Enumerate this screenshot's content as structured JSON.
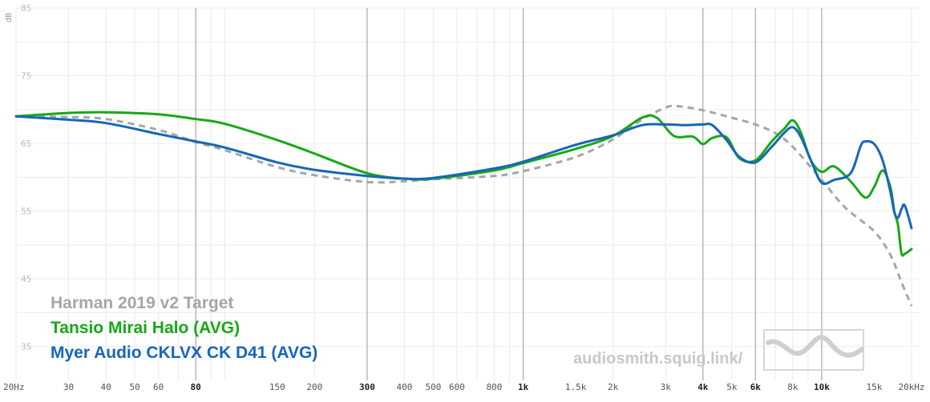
{
  "chart_data": {
    "type": "line",
    "x_scale": "log",
    "xlim": [
      20,
      20000
    ],
    "ylim": [
      30,
      85
    ],
    "ylabel": "dB",
    "y_ticks": [
      35,
      45,
      55,
      65,
      75,
      85
    ],
    "y_tick_labels": [
      "35",
      "45",
      "55",
      "65",
      "75",
      "85"
    ],
    "x_ticks": [
      {
        "v": 20,
        "label": "20Hz",
        "major": false
      },
      {
        "v": 30,
        "label": "30",
        "major": false
      },
      {
        "v": 40,
        "label": "40",
        "major": false
      },
      {
        "v": 50,
        "label": "50",
        "major": false
      },
      {
        "v": 60,
        "label": "60",
        "major": false
      },
      {
        "v": 80,
        "label": "80",
        "major": true
      },
      {
        "v": 150,
        "label": "150",
        "major": false
      },
      {
        "v": 200,
        "label": "200",
        "major": false
      },
      {
        "v": 300,
        "label": "300",
        "major": true
      },
      {
        "v": 400,
        "label": "400",
        "major": false
      },
      {
        "v": 500,
        "label": "500",
        "major": false
      },
      {
        "v": 600,
        "label": "600",
        "major": false
      },
      {
        "v": 800,
        "label": "800",
        "major": false
      },
      {
        "v": 1000,
        "label": "1k",
        "major": true
      },
      {
        "v": 1500,
        "label": "1.5k",
        "major": false
      },
      {
        "v": 2000,
        "label": "2k",
        "major": false
      },
      {
        "v": 3000,
        "label": "3k",
        "major": false
      },
      {
        "v": 4000,
        "label": "4k",
        "major": true
      },
      {
        "v": 5000,
        "label": "5k",
        "major": false
      },
      {
        "v": 6000,
        "label": "6k",
        "major": true
      },
      {
        "v": 8000,
        "label": "8k",
        "major": false
      },
      {
        "v": 10000,
        "label": "10k",
        "major": true
      },
      {
        "v": 15000,
        "label": "15k",
        "major": false
      },
      {
        "v": 20000,
        "label": "20kHz",
        "major": false
      }
    ],
    "series": [
      {
        "name": "Harman 2019 v2 Target",
        "color": "#a3a7a8",
        "dashed": true,
        "x": [
          20,
          30,
          40,
          60,
          80,
          100,
          150,
          200,
          300,
          400,
          500,
          800,
          1000,
          1500,
          2000,
          2500,
          3000,
          3300,
          4000,
          5000,
          6000,
          7000,
          8000,
          10000,
          12000,
          15000,
          17000,
          18500,
          20000
        ],
        "y": [
          69,
          68.9,
          68.6,
          67,
          65.2,
          64,
          61.5,
          60.3,
          59.3,
          59.4,
          59.7,
          60.2,
          60.9,
          63,
          65.6,
          68.5,
          70.3,
          70.5,
          69.9,
          68.8,
          67.8,
          66.5,
          64.5,
          59.6,
          55.5,
          52,
          48.5,
          44.5,
          41
        ]
      },
      {
        "name": "Tansio Mirai Halo (AVG)",
        "color": "#17a817",
        "dashed": false,
        "x": [
          20,
          30,
          40,
          60,
          80,
          100,
          150,
          200,
          300,
          400,
          500,
          800,
          1000,
          1500,
          2000,
          2500,
          2800,
          3200,
          3700,
          4000,
          4300,
          4800,
          5300,
          6000,
          6800,
          7500,
          8000,
          8500,
          9200,
          10000,
          11000,
          12500,
          14000,
          15000,
          16000,
          17000,
          17500,
          18000,
          18500,
          19000,
          20000
        ],
        "y": [
          69,
          69.5,
          69.6,
          69.3,
          68.6,
          67.9,
          65.5,
          63.5,
          60.6,
          59.8,
          59.8,
          61,
          62.1,
          64.2,
          66.1,
          68.8,
          68.8,
          66.1,
          66,
          64.9,
          65.8,
          65.9,
          62.8,
          62.5,
          65.3,
          67.2,
          68.4,
          66.7,
          62.5,
          60.8,
          61.6,
          59.4,
          57,
          58.6,
          61,
          58.5,
          55,
          53,
          48.8,
          48.7,
          49.4
        ]
      },
      {
        "name": "Myer Audio CKLVX CK D41 (AVG)",
        "color": "#1766b8",
        "dashed": false,
        "x": [
          20,
          30,
          40,
          60,
          80,
          100,
          150,
          200,
          300,
          400,
          500,
          800,
          1000,
          1500,
          2000,
          2500,
          3000,
          3500,
          4000,
          4300,
          4800,
          5300,
          6000,
          6800,
          7500,
          8000,
          8500,
          9200,
          10000,
          11000,
          12500,
          13500,
          14000,
          15000,
          16000,
          17000,
          17500,
          18000,
          18500,
          19000,
          20000
        ],
        "y": [
          69,
          68.5,
          68,
          66.4,
          65.3,
          64.4,
          62.2,
          61.1,
          60.2,
          59.8,
          59.9,
          61.3,
          62.3,
          64.8,
          66.2,
          67.7,
          67.8,
          67.7,
          67.8,
          67.7,
          65.5,
          63,
          62.2,
          64.5,
          66.6,
          67.4,
          66,
          62.5,
          59.2,
          59.6,
          60.6,
          64.6,
          65.3,
          64.9,
          62.5,
          57.8,
          54.9,
          54,
          55.3,
          55.8,
          52.5
        ]
      }
    ],
    "legend": [
      {
        "label": "Harman 2019 v2 Target",
        "color": "#a3a7a8"
      },
      {
        "label": "Tansio Mirai Halo (AVG)",
        "color": "#17a817"
      },
      {
        "label": "Myer Audio CKLVX CK D41 (AVG)",
        "color": "#1766b8"
      }
    ],
    "legend_position": "bottom-left",
    "grid": true,
    "watermark": "audiosmith.squig.link/"
  }
}
